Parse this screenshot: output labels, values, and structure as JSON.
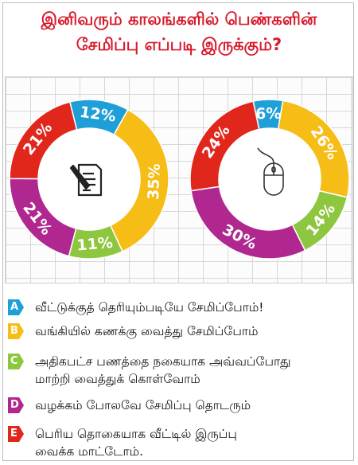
{
  "title": {
    "line1": "இனிவரும் காலங்களில் பெண்களின்",
    "line2": "சேமிப்பு எப்படி இருக்கும்?"
  },
  "legend": [
    {
      "letter": "A",
      "color": "#1e9fd8",
      "text": "வீட்டுக்குத் தெரியும்படியே சேமிப்போம்!"
    },
    {
      "letter": "B",
      "color": "#f6bd16",
      "text": "வங்கியில் கணக்கு வைத்து சேமிப்போம்"
    },
    {
      "letter": "C",
      "color": "#8dc63f",
      "text": "அதிகபட்ச பணத்தை நகையாக அவ்வப்போது\nமாற்றி வைத்துக் கொள்வோம்"
    },
    {
      "letter": "D",
      "color": "#b0288f",
      "text": "வழக்கம் போலவே சேமிப்பு தொடரும்"
    },
    {
      "letter": "E",
      "color": "#e1261c",
      "text": "பெரிய தொகையாக வீட்டில் இருப்பு\nவைக்க மாட்டோம்."
    }
  ],
  "icons": [
    "document-pen-icon",
    "computer-mouse-icon"
  ],
  "chart_data": [
    {
      "type": "pie",
      "style": "donut",
      "categories": [
        "A",
        "B",
        "C",
        "D",
        "E"
      ],
      "values": [
        12,
        35,
        11,
        21,
        21
      ],
      "labels": [
        "12%",
        "35%",
        "11%",
        "21%",
        "21%"
      ],
      "colors": [
        "#1e9fd8",
        "#f6bd16",
        "#8dc63f",
        "#b0288f",
        "#e1261c"
      ],
      "center_icon": "document-pen-icon"
    },
    {
      "type": "pie",
      "style": "donut",
      "categories": [
        "A",
        "B",
        "C",
        "D",
        "E"
      ],
      "values": [
        6,
        26,
        14,
        30,
        24
      ],
      "labels": [
        "6%",
        "26%",
        "14%",
        "30%",
        "24%"
      ],
      "colors": [
        "#1e9fd8",
        "#f6bd16",
        "#8dc63f",
        "#b0288f",
        "#e1261c"
      ],
      "center_icon": "computer-mouse-icon"
    }
  ]
}
